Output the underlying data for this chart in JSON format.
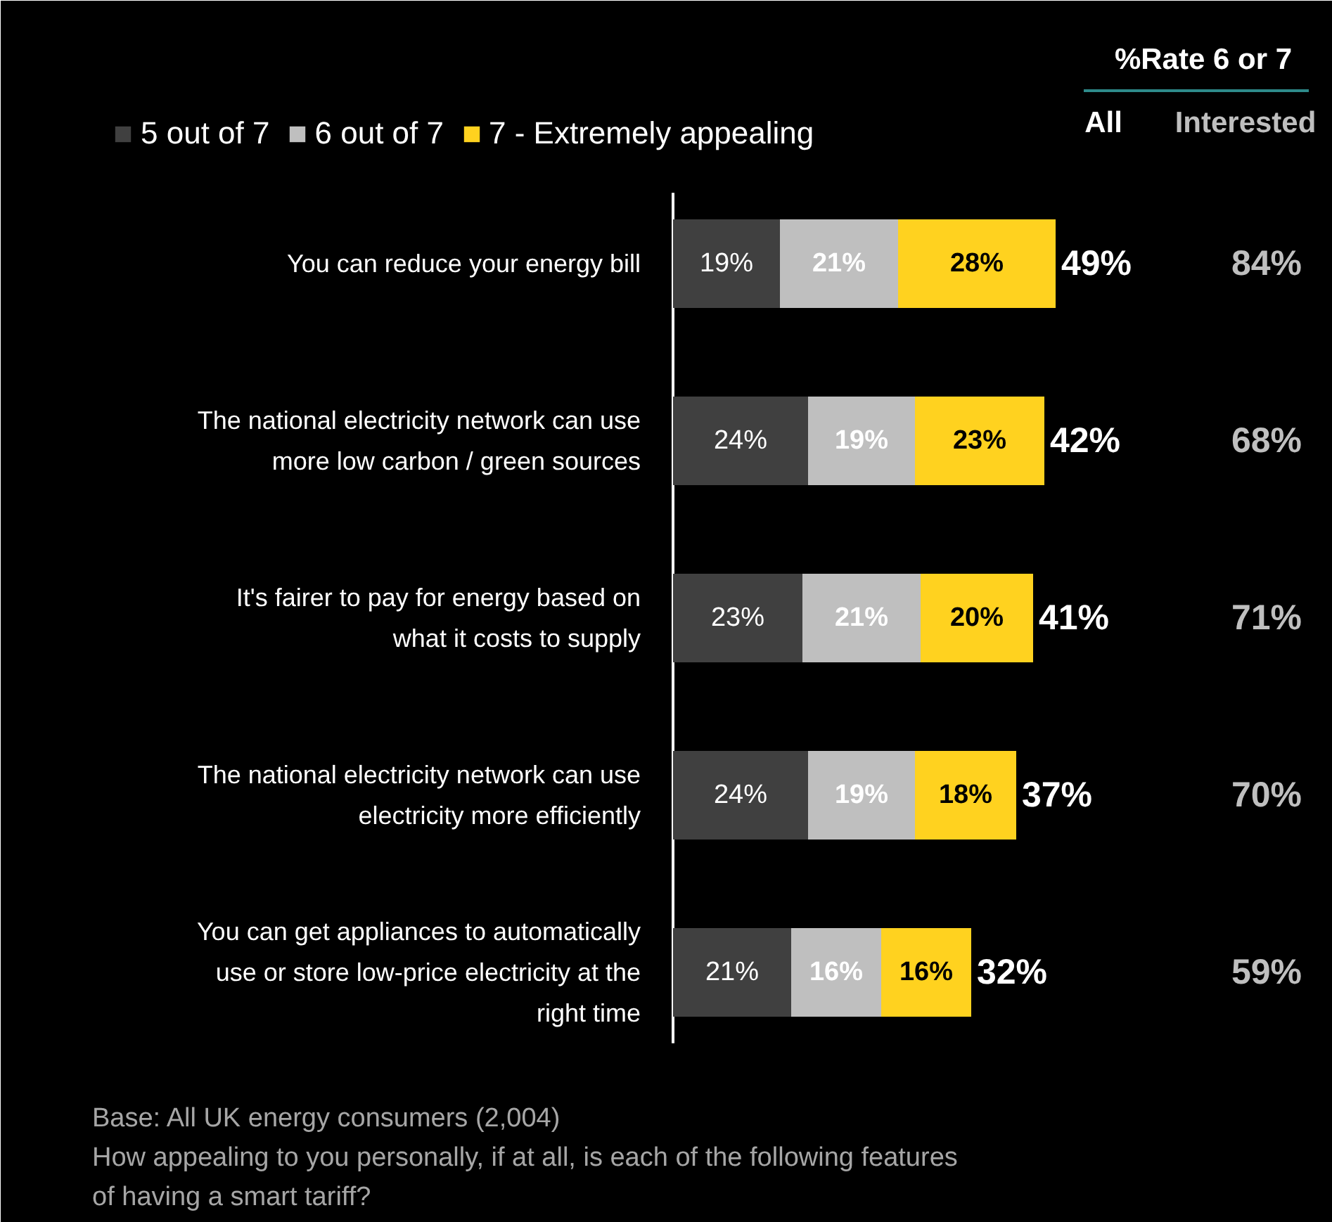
{
  "chart_data": {
    "type": "bar",
    "orientation": "horizontal",
    "stacked": true,
    "legend": "top",
    "categories": [
      "You can reduce your energy bill",
      "The national electricity network can use more low carbon / green sources",
      "It's fairer to pay for energy based on what it costs to supply",
      "The national electricity network can use electricity more efficiently",
      "You can get appliances to automatically use or store low-price electricity at the right time"
    ],
    "series": [
      {
        "name": "5 out of 7",
        "color": "#404040",
        "values": [
          19,
          24,
          23,
          24,
          21
        ],
        "value_labels": [
          "19%",
          "24%",
          "23%",
          "24%",
          "21%"
        ]
      },
      {
        "name": "6 out of 7",
        "color": "#bfbfbf",
        "values": [
          21,
          19,
          21,
          19,
          16
        ],
        "value_labels": [
          "21%",
          "19%",
          "21%",
          "19%",
          "16%"
        ]
      },
      {
        "name": "7 - Extremely appealing",
        "color": "#ffd21f",
        "values": [
          28,
          23,
          20,
          18,
          16
        ],
        "value_labels": [
          "28%",
          "23%",
          "20%",
          "18%",
          "16%"
        ]
      }
    ],
    "annotations": [
      "%Rate 6 or 7",
      "All",
      "Interested",
      "49%",
      "42%",
      "41%",
      "37%",
      "32%",
      "84%",
      "68%",
      "71%",
      "70%",
      "59%",
      "Base: All UK energy consumers (2,004)",
      "How appealing to you personally, if at all, is each of the following features of having a smart tariff?"
    ]
  }
}
